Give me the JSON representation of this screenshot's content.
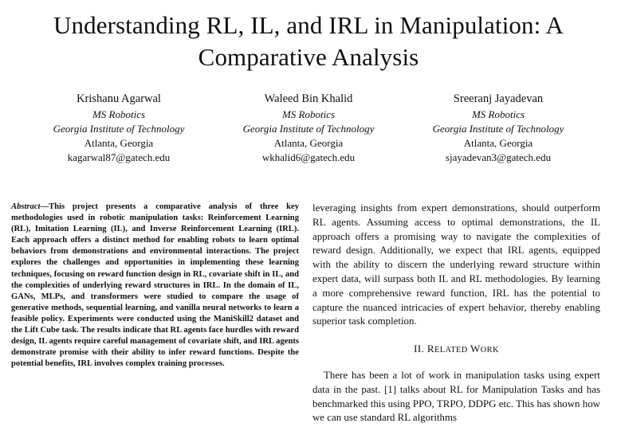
{
  "paper": {
    "title": "Understanding RL, IL, and IRL in Manipulation: A Comparative Analysis",
    "authors": [
      {
        "name": "Krishanu Agarwal",
        "dept": "MS Robotics",
        "org": "Georgia Institute of Technology",
        "city": "Atlanta, Georgia",
        "email": "kagarwal87@gatech.edu"
      },
      {
        "name": "Waleed Bin Khalid",
        "dept": "MS Robotics",
        "org": "Georgia Institute of Technology",
        "city": "Atlanta, Georgia",
        "email": "wkhalid6@gatech.edu"
      },
      {
        "name": "Sreeranj Jayadevan",
        "dept": "MS Robotics",
        "org": "Georgia Institute of Technology",
        "city": "Atlanta, Georgia",
        "email": "sjayadevan3@gatech.edu"
      }
    ],
    "abstract_label": "Abstract",
    "abstract_text": "—This project presents a comparative analysis of three key methodologies used in robotic manipulation tasks: Reinforcement Learning (RL), Imitation Learning (IL), and Inverse Reinforcement Learning (IRL). Each approach offers a distinct method for enabling robots to learn optimal behaviors from demonstrations and environmental interactions. The project explores the challenges and opportunities in implementing these learning techniques, focusing on reward function design in RL, covariate shift in IL, and the complexities of underlying reward structures in IRL. In the domain of IL, GANs, MLPs, and transformers were studied to compare the usage of generative methods, sequential learning, and vanilla neural networks to learn a feasible policy. Experiments were conducted using the ManiSkill2 dataset and the Lift Cube task. The results indicate that RL agents face hurdles with reward design, IL agents require careful management of covariate shift, and IRL agents demonstrate promise with their ability to infer reward functions. Despite the potential benefits, IRL involves complex training processes.",
    "right_para_1": "leveraging insights from expert demonstrations, should outperform RL agents. Assuming access to optimal demonstrations, the IL approach offers a promising way to navigate the complexities of reward design. Additionally, we expect that IRL agents, equipped with the ability to discern the underlying reward structure within expert data, will surpass both IL and RL methodologies. By learning a more comprehensive reward function, IRL has the potential to capture the nuanced intricacies of expert behavior, thereby enabling superior task completion.",
    "section_2": {
      "number": "II.",
      "first_letter_1": "R",
      "rest_1": "ELATED",
      "first_letter_2": "W",
      "rest_2": "ORK"
    },
    "right_para_2": "There has been a lot of work in manipulation tasks using expert data in the past. [1] talks about RL for Manipulation Tasks and has benchmarked this using PPO, TRPO, DDPG etc. This has shown how we can use standard RL algorithms"
  }
}
